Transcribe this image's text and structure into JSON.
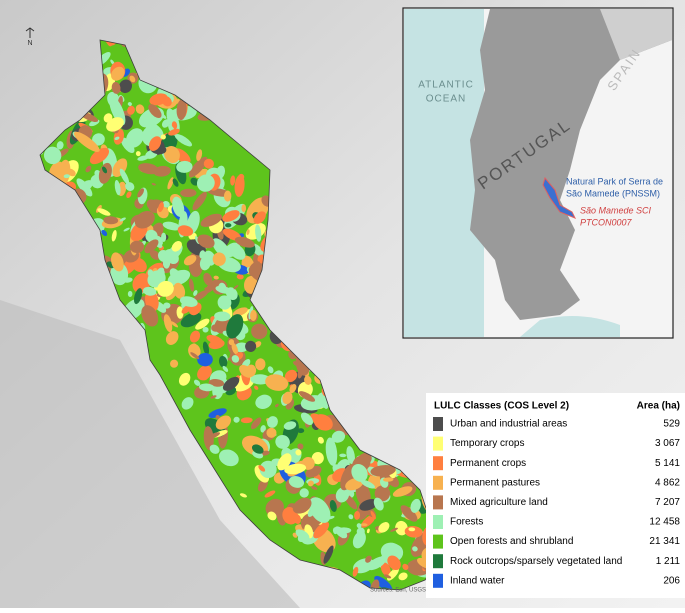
{
  "map": {
    "north_label": "N",
    "attribution": "Sources: Esri, USGS, NOAA"
  },
  "inset": {
    "ocean_lines": [
      "ATLANTIC",
      "OCEAN"
    ],
    "spain": "SPAIN",
    "portugal": "PORTUGAL",
    "park_lines": [
      "Natural Park of Serra de",
      "São Mamede (PNSSM)"
    ],
    "sci_lines": [
      "São Mamede SCI",
      "PTCON0007"
    ]
  },
  "legend": {
    "title": "LULC Classes (COS Level 2)",
    "area_header": "Area (ha)",
    "rows": [
      {
        "name": "Urban and industrial areas",
        "area": "529",
        "color": "#4d4d4d"
      },
      {
        "name": "Temporary crops",
        "area": "3 067",
        "color": "#ffff73"
      },
      {
        "name": "Permanent crops",
        "area": "5 141",
        "color": "#ff7f3f"
      },
      {
        "name": "Permanent pastures",
        "area": "4 862",
        "color": "#f7b150"
      },
      {
        "name": "Mixed agriculture land",
        "area": "7 207",
        "color": "#b8764f"
      },
      {
        "name": "Forests",
        "area": "12 458",
        "color": "#9ef0b4"
      },
      {
        "name": "Open forests and shrubland",
        "area": "21 341",
        "color": "#5ec41c"
      },
      {
        "name": "Rock outcrops/sparsely vegetated land",
        "area": "1 211",
        "color": "#1f7a3c"
      },
      {
        "name": "Inland water",
        "area": "206",
        "color": "#1f5fe0"
      }
    ]
  }
}
